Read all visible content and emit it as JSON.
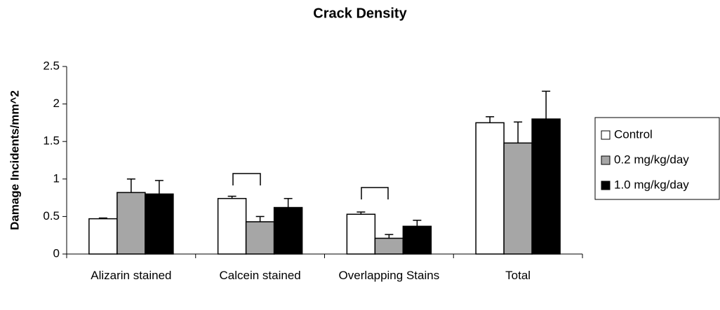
{
  "chart_data": {
    "type": "bar",
    "title": "Crack Density",
    "y_label": "Damage Incidents/mm^2",
    "categories": [
      "Alizarin stained",
      "Calcein stained",
      "Overlapping Stains",
      "Total"
    ],
    "series": [
      {
        "name": "Control",
        "color": "#ffffff",
        "values": [
          0.47,
          0.74,
          0.53,
          1.75
        ],
        "errors": [
          0.01,
          0.03,
          0.03,
          0.08
        ]
      },
      {
        "name": "0.2 mg/kg/day",
        "color": "#a6a6a6",
        "values": [
          0.82,
          0.43,
          0.21,
          1.48
        ],
        "errors": [
          0.18,
          0.07,
          0.05,
          0.28
        ]
      },
      {
        "name": "1.0 mg/kg/day",
        "color": "#000000",
        "values": [
          0.8,
          0.62,
          0.37,
          1.8
        ],
        "errors": [
          0.18,
          0.12,
          0.08,
          0.37
        ]
      }
    ],
    "ylim": [
      0,
      2.5
    ],
    "yticks": [
      0,
      0.5,
      1,
      1.5,
      2,
      2.5
    ],
    "grid": false,
    "legend": "right"
  }
}
